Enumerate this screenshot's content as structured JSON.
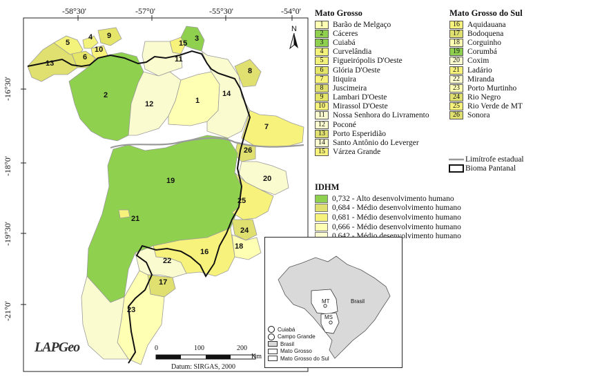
{
  "coordinates": {
    "longitudes": [
      "-58°30'",
      "-57°0'",
      "-55°30'",
      "-54°0'"
    ],
    "latitudes": [
      "-16°30'",
      "-18°0'",
      "-19°30'",
      "-21°0'"
    ]
  },
  "north_arrow": {
    "label": "N"
  },
  "legend_mato_grosso": {
    "title": "Mato Grosso",
    "items": [
      {
        "num": "1",
        "name": "Barão de Melgaço",
        "color": "#ffffb3"
      },
      {
        "num": "2",
        "name": "Cáceres",
        "color": "#8fd14f"
      },
      {
        "num": "3",
        "name": "Cuiabá",
        "color": "#8fd14f"
      },
      {
        "num": "4",
        "name": "Curvelândia",
        "color": "#f3f27a"
      },
      {
        "num": "5",
        "name": "Figueirópolis D'Oeste",
        "color": "#f3f27a"
      },
      {
        "num": "6",
        "name": "Glória D'Oeste",
        "color": "#e5e56a"
      },
      {
        "num": "7",
        "name": "Itiquira",
        "color": "#f7f27c"
      },
      {
        "num": "8",
        "name": "Juscimeira",
        "color": "#dfe070"
      },
      {
        "num": "9",
        "name": "Lambari D'Oeste",
        "color": "#e5e56a"
      },
      {
        "num": "10",
        "name": "Mirassol D'Oeste",
        "color": "#f7f27c"
      },
      {
        "num": "11",
        "name": "Nossa Senhora do Livramento",
        "color": "#fbfbd0"
      },
      {
        "num": "12",
        "name": "Poconé",
        "color": "#fbfbd0"
      },
      {
        "num": "13",
        "name": "Porto Esperidião",
        "color": "#dfe070"
      },
      {
        "num": "14",
        "name": "Santo Antônio do Leverger",
        "color": "#fbfbd0"
      },
      {
        "num": "15",
        "name": "Várzea Grande",
        "color": "#f7f27c"
      }
    ]
  },
  "legend_mato_grosso_do_sul": {
    "title": "Mato Grosso do Sul",
    "items": [
      {
        "num": "16",
        "name": "Aquidauana",
        "color": "#f7f27c"
      },
      {
        "num": "17",
        "name": "Bodoquena",
        "color": "#dfe070"
      },
      {
        "num": "18",
        "name": "Corguinho",
        "color": "#ffffb3"
      },
      {
        "num": "19",
        "name": "Corumbá",
        "color": "#8fd14f"
      },
      {
        "num": "20",
        "name": "Coxim",
        "color": "#fbfbd0"
      },
      {
        "num": "21",
        "name": "Ladário",
        "color": "#f7f27c"
      },
      {
        "num": "22",
        "name": "Miranda",
        "color": "#fbfbd0"
      },
      {
        "num": "23",
        "name": "Porto Murtinho",
        "color": "#ffffb3"
      },
      {
        "num": "24",
        "name": "Rio Negro",
        "color": "#dfe070"
      },
      {
        "num": "25",
        "name": "Rio Verde de MT",
        "color": "#f7f27c"
      },
      {
        "num": "26",
        "name": "Sonora",
        "color": "#dfe070"
      }
    ]
  },
  "line_legend": {
    "limit": "Limítrofe estadual",
    "biome": "Bioma Pantanal"
  },
  "idhm": {
    "title": "IDHM",
    "classes": [
      {
        "label": "0,732 - Alto desenvolvimento humano",
        "color": "#8fd14f"
      },
      {
        "label": "0,684 - Médio desenvolvimento humano",
        "color": "#dfe070"
      },
      {
        "label": "0,681 - Médio desenvolvimento humano",
        "color": "#f7f27c"
      },
      {
        "label": "0,666 - Médio desenvolvimento humano",
        "color": "#ffffb3"
      },
      {
        "label": "0,642 - Médio desenvolvimento humano",
        "color": "#fbfbd0"
      }
    ]
  },
  "inset": {
    "labels": {
      "mt": "MT",
      "ms": "MS",
      "brasil": "Brasil"
    },
    "legend": {
      "cuiaba": "Cuiabá",
      "campo_grande": "Campo Grande",
      "brasil": "Brasil",
      "mato_grosso": "Mato Grosso",
      "mato_grosso_do_sul": "Mato Grosso do Sul"
    }
  },
  "scale": {
    "ticks": [
      "0",
      "100",
      "200"
    ],
    "unit": "Km",
    "datum": "Datum: SIRGAS, 2000"
  },
  "logo": {
    "text": "LAPGeo"
  }
}
